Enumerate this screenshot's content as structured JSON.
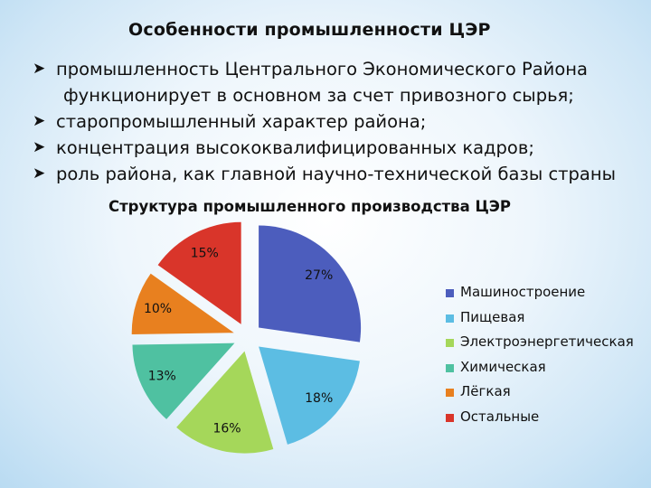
{
  "slide": {
    "title": "Особенности промышленности ЦЭР",
    "bullets": [
      {
        "line1": "промышленность Центрального Экономического Района",
        "line2": "функционирует в основном за счет привозного сырья;"
      },
      {
        "line1": "старопромышленный характер района;"
      },
      {
        "line1": "концентрация высококвалифицированных кадров;"
      },
      {
        "line1": "роль района, как главной научно-технической базы страны"
      }
    ],
    "bullet_icon": "arrow-bullet-icon"
  },
  "chart_data": {
    "type": "pie",
    "title": "Структура промышленного производства ЦЭР",
    "categories": [
      "Машиностроение",
      "Пищевая",
      "Электроэнергетическая",
      "Химическая",
      "Лёгкая",
      "Остальные"
    ],
    "values": [
      27,
      18,
      16,
      13,
      10,
      15
    ],
    "labels": [
      "27%",
      "18%",
      "16%",
      "13%",
      "10%",
      "15%"
    ],
    "colors": [
      "#4c5dbd",
      "#5cbde3",
      "#a5d75a",
      "#4fc1a1",
      "#e8801f",
      "#d9352a"
    ],
    "exploded": true,
    "legend_position": "right"
  }
}
